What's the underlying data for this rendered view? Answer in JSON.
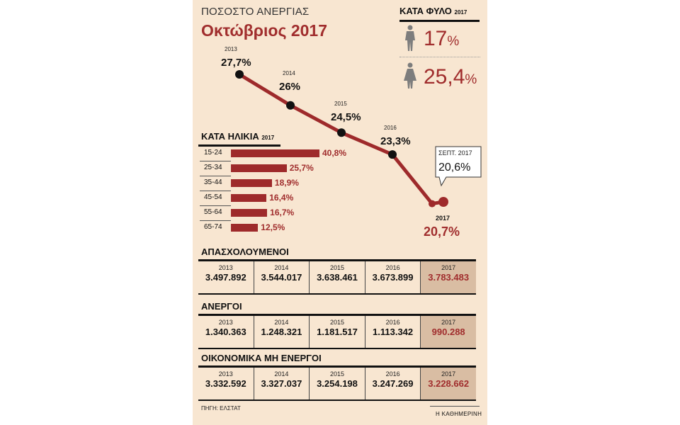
{
  "header": {
    "supertitle": "ΠΟΣΟΣΤΟ ΑΝΕΡΓΙΑΣ",
    "title": "Οκτώβριος 2017"
  },
  "gender": {
    "title": "ΚΑΤΑ ΦΥΛΟ",
    "title_year": "2017",
    "men": {
      "value": "17",
      "unit": "%"
    },
    "women": {
      "value": "25,4",
      "unit": "%"
    }
  },
  "age": {
    "title": "ΚΑΤΑ ΗΛΙΚΙΑ",
    "title_year": "2017",
    "rows": [
      {
        "label": "15-24",
        "value": 40.8,
        "text": "40,8%"
      },
      {
        "label": "25-34",
        "value": 25.7,
        "text": "25,7%"
      },
      {
        "label": "35-44",
        "value": 18.9,
        "text": "18,9%"
      },
      {
        "label": "45-54",
        "value": 16.4,
        "text": "16,4%"
      },
      {
        "label": "55-64",
        "value": 16.7,
        "text": "16,7%"
      },
      {
        "label": "65-74",
        "value": 12.5,
        "text": "12,5%"
      }
    ]
  },
  "trend": {
    "points": [
      {
        "year": "2013",
        "text": "27,7%"
      },
      {
        "year": "2014",
        "text": "26%"
      },
      {
        "year": "2015",
        "text": "24,5%"
      },
      {
        "year": "2016",
        "text": "23,3%"
      },
      {
        "year": "2017",
        "text": "20,7%"
      }
    ],
    "callout": {
      "label": "ΣΕΠΤ. 2017",
      "text": "20,6%"
    }
  },
  "chart_data": [
    {
      "type": "line",
      "title": "ΠΟΣΟΣΤΟ ΑΝΕΡΓΙΑΣ Οκτώβριος 2017",
      "x": [
        "2013",
        "2014",
        "2015",
        "2016",
        "ΣΕΠΤ. 2017",
        "2017"
      ],
      "values": [
        27.7,
        26.0,
        24.5,
        23.3,
        20.6,
        20.7
      ],
      "ylabel": "%",
      "ylim": [
        20,
        28
      ]
    },
    {
      "type": "bar",
      "title": "ΚΑΤΑ ΗΛΙΚΙΑ 2017",
      "categories": [
        "15-24",
        "25-34",
        "35-44",
        "45-54",
        "55-64",
        "65-74"
      ],
      "values": [
        40.8,
        25.7,
        18.9,
        16.4,
        16.7,
        12.5
      ],
      "orientation": "horizontal"
    },
    {
      "type": "table",
      "title": "ΚΑΤΑ ΦΥΛΟ 2017",
      "categories": [
        "men",
        "women"
      ],
      "values": [
        17,
        25.4
      ]
    }
  ],
  "tables": [
    {
      "title": "ΑΠΑΣΧΟΛΟΥΜΕΝΟΙ",
      "years": [
        "2013",
        "2014",
        "2015",
        "2016",
        "2017"
      ],
      "values": [
        "3.497.892",
        "3.544.017",
        "3.638.461",
        "3.673.899",
        "3.783.483"
      ]
    },
    {
      "title": "ΑΝΕΡΓΟΙ",
      "years": [
        "2013",
        "2014",
        "2015",
        "2016",
        "2017"
      ],
      "values": [
        "1.340.363",
        "1.248.321",
        "1.181.517",
        "1.113.342",
        "990.288"
      ]
    },
    {
      "title": "ΟΙΚΟΝΟΜΙΚΑ ΜΗ ΕΝΕΡΓΟΙ",
      "years": [
        "2013",
        "2014",
        "2015",
        "2016",
        "2017"
      ],
      "values": [
        "3.332.592",
        "3.327.037",
        "3.254.198",
        "3.247.269",
        "3.228.662"
      ]
    }
  ],
  "footer": {
    "source": "ΠΗΓΗ: ΕΛΣΤΑΤ",
    "brand": "Η ΚΑΘΗΜΕΡΙΝΗ"
  },
  "colors": {
    "accent": "#a02d2d",
    "line": "#9e2a2b",
    "panel": "#f8e6d1",
    "highlight": "#d9bda3"
  }
}
